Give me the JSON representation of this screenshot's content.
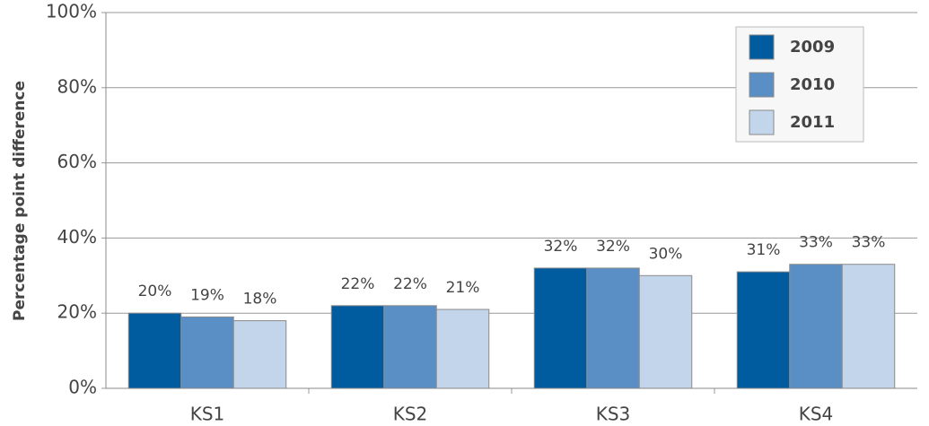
{
  "chart_data": {
    "type": "bar",
    "y_label": "Percentage point difference",
    "categories": [
      "KS1",
      "KS2",
      "KS3",
      "KS4"
    ],
    "series": [
      {
        "name": "2009",
        "color": "#005b9f",
        "values": [
          20,
          22,
          32,
          31
        ],
        "value_labels": [
          "20%",
          "22%",
          "32%",
          "31%"
        ]
      },
      {
        "name": "2010",
        "color": "#5a8fc6",
        "values": [
          19,
          22,
          32,
          33
        ],
        "value_labels": [
          "19%",
          "22%",
          "32%",
          "33%"
        ]
      },
      {
        "name": "2011",
        "color": "#c3d5ea",
        "values": [
          18,
          21,
          30,
          33
        ],
        "value_labels": [
          "18%",
          "21%",
          "30%",
          "33%"
        ]
      }
    ],
    "ylim": [
      0,
      100
    ],
    "yticks": [
      {
        "value": 0,
        "label": "0%"
      },
      {
        "value": 20,
        "label": "20%"
      },
      {
        "value": 40,
        "label": "40%"
      },
      {
        "value": 60,
        "label": "60%"
      },
      {
        "value": 80,
        "label": "80%"
      },
      {
        "value": 100,
        "label": "100%"
      }
    ],
    "grid": true,
    "legend": "upper right"
  }
}
